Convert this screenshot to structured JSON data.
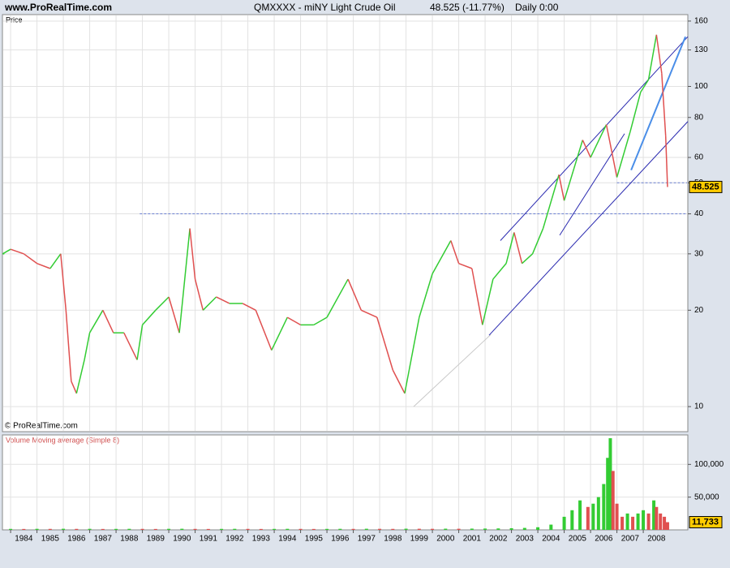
{
  "header": {
    "site": "www.ProRealTime.com",
    "title": "QMXXXX - miNY Light Crude Oil",
    "change": "48.525 (-11.77%)",
    "period": "Daily  0:00"
  },
  "chart_data": [
    {
      "type": "line",
      "label": "Price",
      "copyright": "© ProRealTime.com",
      "log_scale": true,
      "grid": true,
      "color_up": "#33cc33",
      "color_down": "#e05050",
      "x": [
        1983.7,
        1984.0,
        1984.5,
        1985.0,
        1985.5,
        1985.9,
        1986.1,
        1986.3,
        1986.5,
        1986.8,
        1987.0,
        1987.5,
        1987.9,
        1988.3,
        1988.8,
        1989.0,
        1989.5,
        1990.0,
        1990.4,
        1990.8,
        1991.0,
        1991.3,
        1991.8,
        1992.3,
        1992.8,
        1993.3,
        1993.9,
        1994.5,
        1995.0,
        1995.5,
        1996.0,
        1996.8,
        1997.3,
        1997.9,
        1998.5,
        1998.95,
        1999.5,
        2000.0,
        2000.7,
        2001.0,
        2001.5,
        2001.9,
        2002.3,
        2002.8,
        2003.1,
        2003.4,
        2003.8,
        2004.2,
        2004.8,
        2005.0,
        2005.7,
        2006.0,
        2006.6,
        2007.0,
        2007.5,
        2007.9,
        2008.2,
        2008.5,
        2008.7,
        2008.85,
        2008.92
      ],
      "values": [
        30,
        31,
        30,
        28,
        27,
        30,
        20,
        12,
        11,
        14,
        17,
        20,
        17,
        17,
        14,
        18,
        20,
        22,
        17,
        36,
        25,
        20,
        22,
        21,
        21,
        20,
        15,
        19,
        18,
        18,
        19,
        25,
        20,
        19,
        13,
        11,
        19,
        26,
        33,
        28,
        27,
        18,
        25,
        28,
        35,
        28,
        30,
        36,
        53,
        44,
        68,
        60,
        76,
        52,
        72,
        96,
        105,
        145,
        110,
        70,
        48.525
      ],
      "xlim": [
        1983.69,
        2009.69
      ],
      "xticks": [
        1984,
        1985,
        1986,
        1987,
        1988,
        1989,
        1990,
        1991,
        1992,
        1993,
        1994,
        1995,
        1996,
        1997,
        1998,
        1999,
        2000,
        2001,
        2002,
        2003,
        2004,
        2005,
        2006,
        2007,
        2008
      ],
      "ylim": [
        8.35,
        167.6
      ],
      "yticks": [
        10,
        20,
        30,
        40,
        50,
        60,
        80,
        100,
        130,
        160
      ],
      "horizontal_lines": [
        {
          "value": 40,
          "from": 1988.9
        },
        {
          "value": 50,
          "from": 2007.0
        }
      ],
      "trend_lines": [
        {
          "x": [
            2002.58,
            2009.69
          ],
          "y": [
            33.0,
            143
          ],
          "color": "#2a2ab0"
        },
        {
          "x": [
            2002.15,
            2009.69
          ],
          "y": [
            16.7,
            77.7
          ],
          "color": "#2a2ab0"
        },
        {
          "x": [
            2004.83,
            2007.29
          ],
          "y": [
            34.3,
            71.2
          ],
          "color": "#2a2ab0"
        },
        {
          "x": [
            2007.54,
            2009.6
          ],
          "y": [
            54.8,
            143
          ],
          "color": "#4a8ee8"
        },
        {
          "x": [
            1999.29,
            2002.22
          ],
          "y": [
            10,
            16.8
          ],
          "color": "#c8c8c8"
        }
      ]
    },
    {
      "type": "bar",
      "label": "Volume Moving average (Simple 8)",
      "grid": true,
      "color_up": "#33cc33",
      "color_down": "#e05050",
      "x": [
        1984,
        1984.5,
        1985,
        1985.5,
        1986,
        1986.5,
        1987,
        1987.5,
        1988,
        1988.5,
        1989,
        1989.5,
        1990,
        1990.5,
        1991,
        1991.5,
        1992,
        1992.5,
        1993,
        1993.5,
        1994,
        1994.5,
        1995,
        1995.5,
        1996,
        1996.5,
        1997,
        1997.5,
        1998,
        1998.5,
        1999,
        1999.5,
        2000,
        2000.5,
        2001,
        2001.5,
        2002,
        2002.5,
        2003,
        2003.5,
        2004,
        2004.5,
        2005,
        2005.3,
        2005.6,
        2005.9,
        2006.1,
        2006.3,
        2006.5,
        2006.65,
        2006.75,
        2006.85,
        2007.0,
        2007.2,
        2007.4,
        2007.6,
        2007.8,
        2008.0,
        2008.2,
        2008.4,
        2008.5,
        2008.65,
        2008.8,
        2008.92
      ],
      "values": [
        1500,
        1400,
        1600,
        1500,
        1700,
        1500,
        1600,
        1400,
        1500,
        1600,
        1500,
        1400,
        1600,
        1700,
        1500,
        1400,
        1500,
        1600,
        1500,
        1400,
        1500,
        1600,
        1500,
        1400,
        1500,
        1600,
        1500,
        1700,
        1600,
        1500,
        1800,
        1700,
        1600,
        1800,
        1700,
        1900,
        2000,
        2200,
        2500,
        3000,
        4000,
        8000,
        20000,
        30000,
        45000,
        35000,
        40000,
        50000,
        70000,
        110000,
        140000,
        90000,
        40000,
        20000,
        25000,
        20000,
        25000,
        30000,
        25000,
        45000,
        35000,
        25000,
        20000,
        11733
      ],
      "current_label": "11,733",
      "xlim": [
        1983.69,
        2009.69
      ],
      "xticks": [
        1984,
        1985,
        1986,
        1987,
        1988,
        1989,
        1990,
        1991,
        1992,
        1993,
        1994,
        1995,
        1996,
        1997,
        1998,
        1999,
        2000,
        2001,
        2002,
        2003,
        2004,
        2005,
        2006,
        2007,
        2008
      ],
      "ylim": [
        0,
        145000
      ],
      "yticks": [
        {
          "value": 50000,
          "label": "50,000"
        },
        {
          "value": 100000,
          "label": "100,000"
        }
      ]
    }
  ]
}
